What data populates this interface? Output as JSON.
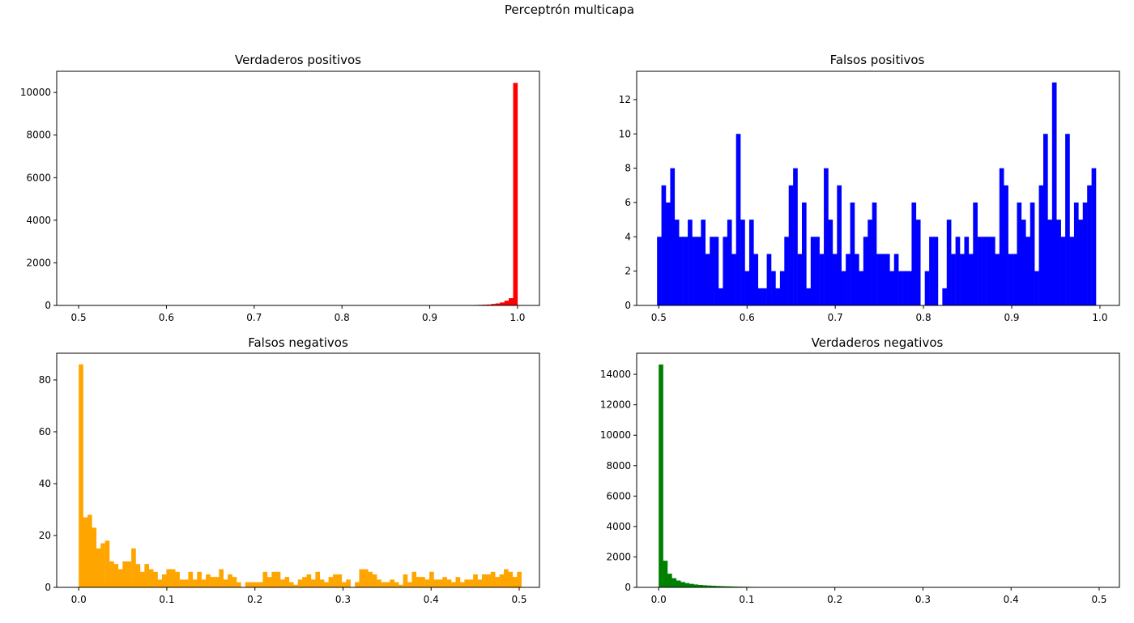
{
  "suptitle": "Perceptrón multicapa",
  "chart_data": [
    {
      "type": "bar",
      "title": "Verdaderos positivos",
      "color": "#ff0000",
      "xlim": [
        0.475,
        1.025
      ],
      "ylim": [
        0,
        10995
      ],
      "xticks": [
        0.5,
        0.6,
        0.7,
        0.8,
        0.9,
        1.0
      ],
      "xtick_labels": [
        "0.5",
        "0.6",
        "0.7",
        "0.8",
        "0.9",
        "1.0"
      ],
      "yticks": [
        0,
        2000,
        4000,
        6000,
        8000,
        10000
      ],
      "ytick_labels": [
        "0",
        "2000",
        "4000",
        "6000",
        "8000",
        "10000"
      ],
      "bin_start": 0.5,
      "bin_width": 0.005,
      "values": [
        0,
        0,
        0,
        0,
        0,
        0,
        0,
        0,
        0,
        0,
        0,
        0,
        0,
        0,
        0,
        0,
        0,
        0,
        0,
        0,
        0,
        0,
        0,
        0,
        0,
        0,
        0,
        0,
        0,
        2,
        0,
        0,
        0,
        0,
        0,
        0,
        0,
        0,
        0,
        0,
        0,
        0,
        0,
        0,
        0,
        0,
        0,
        0,
        0,
        0,
        0,
        0,
        0,
        0,
        0,
        0,
        0,
        0,
        0,
        0,
        0,
        1,
        3,
        2,
        1,
        2,
        3,
        2,
        1,
        4,
        3,
        2,
        3,
        2,
        4,
        3,
        5,
        3,
        4,
        5,
        6,
        5,
        6,
        7,
        8,
        9,
        11,
        14,
        17,
        19,
        22,
        28,
        36,
        45,
        70,
        95,
        140,
        220,
        340,
        10450
      ]
    },
    {
      "type": "bar",
      "title": "Falsos positivos",
      "color": "#0000ff",
      "xlim": [
        0.4749,
        1.0221
      ],
      "ylim": [
        0,
        13.65
      ],
      "xticks": [
        0.5,
        0.6,
        0.7,
        0.8,
        0.9,
        1.0
      ],
      "xtick_labels": [
        "0.5",
        "0.6",
        "0.7",
        "0.8",
        "0.9",
        "1.0"
      ],
      "yticks": [
        0,
        2,
        4,
        6,
        8,
        10,
        12
      ],
      "ytick_labels": [
        "0",
        "2",
        "4",
        "6",
        "8",
        "10",
        "12"
      ],
      "bin_start": 0.498,
      "bin_width": 0.004975,
      "values": [
        4,
        7,
        6,
        8,
        5,
        4,
        4,
        5,
        4,
        4,
        5,
        3,
        4,
        4,
        1,
        4,
        5,
        3,
        10,
        5,
        2,
        5,
        3,
        1,
        1,
        3,
        2,
        1,
        2,
        4,
        7,
        8,
        3,
        6,
        1,
        4,
        4,
        3,
        8,
        5,
        3,
        7,
        2,
        3,
        6,
        3,
        2,
        4,
        5,
        6,
        3,
        3,
        3,
        2,
        3,
        2,
        2,
        2,
        6,
        5,
        0,
        2,
        4,
        4,
        0,
        1,
        5,
        3,
        4,
        3,
        4,
        3,
        6,
        4,
        4,
        4,
        4,
        3,
        8,
        7,
        3,
        3,
        6,
        5,
        4,
        6,
        2,
        7,
        10,
        5,
        13,
        5,
        4,
        10,
        4,
        6,
        5,
        6,
        7,
        8
      ]
    },
    {
      "type": "bar",
      "title": "Falsos negativos",
      "color": "#ffa500",
      "xlim": [
        -0.025,
        0.523
      ],
      "ylim": [
        0,
        90.3
      ],
      "xticks": [
        0.0,
        0.1,
        0.2,
        0.3,
        0.4,
        0.5
      ],
      "xtick_labels": [
        "0.0",
        "0.1",
        "0.2",
        "0.3",
        "0.4",
        "0.5"
      ],
      "yticks": [
        0,
        20,
        40,
        60,
        80
      ],
      "ytick_labels": [
        "0",
        "20",
        "40",
        "60",
        "80"
      ],
      "bin_start": 0.0,
      "bin_width": 0.004975,
      "values": [
        86,
        27,
        28,
        23,
        15,
        17,
        18,
        10,
        9,
        7,
        10,
        10,
        15,
        9,
        6,
        9,
        7,
        6,
        3,
        5,
        7,
        7,
        6,
        3,
        3,
        6,
        3,
        6,
        3,
        5,
        4,
        4,
        7,
        3,
        5,
        4,
        2,
        0,
        2,
        2,
        2,
        2,
        6,
        4,
        6,
        6,
        3,
        4,
        2,
        1,
        3,
        4,
        5,
        3,
        6,
        3,
        2,
        4,
        5,
        5,
        2,
        3,
        0,
        2,
        7,
        7,
        6,
        5,
        3,
        2,
        2,
        3,
        2,
        1,
        5,
        2,
        6,
        4,
        4,
        3,
        6,
        3,
        3,
        4,
        3,
        2,
        4,
        2,
        3,
        3,
        5,
        3,
        5,
        5,
        6,
        4,
        5,
        7,
        6,
        4,
        6
      ]
    },
    {
      "type": "bar",
      "title": "Verdaderos negativos",
      "color": "#008000",
      "xlim": [
        -0.025,
        0.523
      ],
      "ylim": [
        0,
        15390
      ],
      "xticks": [
        0.0,
        0.1,
        0.2,
        0.3,
        0.4,
        0.5
      ],
      "xtick_labels": [
        "0.0",
        "0.1",
        "0.2",
        "0.3",
        "0.4",
        "0.5"
      ],
      "yticks": [
        0,
        2000,
        4000,
        6000,
        8000,
        10000,
        12000,
        14000
      ],
      "ytick_labels": [
        "0",
        "2000",
        "4000",
        "6000",
        "8000",
        "10000",
        "12000",
        "14000"
      ],
      "bin_start": 0.0,
      "bin_width": 0.004975,
      "values": [
        14650,
        1750,
        900,
        600,
        450,
        350,
        280,
        230,
        190,
        160,
        140,
        120,
        105,
        90,
        80,
        70,
        60,
        52,
        45,
        40,
        35,
        30,
        27,
        24,
        22,
        20,
        18,
        16,
        15,
        14,
        13,
        12,
        11,
        10,
        10,
        9,
        9,
        8,
        8,
        8,
        7,
        7,
        7,
        6,
        6,
        6,
        6,
        6,
        5,
        5,
        5,
        5,
        5,
        4,
        4,
        4,
        4,
        4,
        4,
        4,
        4,
        4,
        4,
        3,
        3,
        3,
        3,
        3,
        3,
        3,
        3,
        3,
        3,
        3,
        3,
        3,
        3,
        3,
        3,
        3,
        25,
        3,
        3,
        3,
        3,
        25,
        3,
        3,
        3,
        2,
        2,
        2,
        2,
        2,
        2,
        15,
        2,
        2,
        2,
        2
      ]
    }
  ]
}
